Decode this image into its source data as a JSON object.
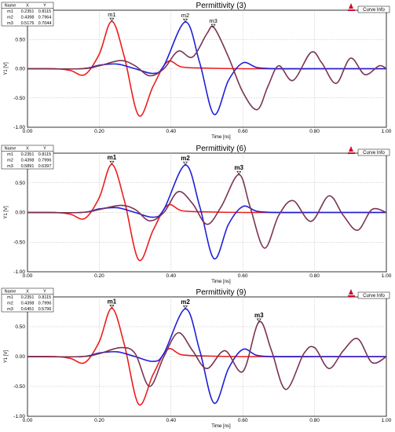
{
  "chart_data": [
    {
      "type": "line",
      "title": "Permittivity (3)",
      "xlabel": "Time [ns]",
      "ylabel": "Y1 [V]",
      "xlim": [
        0,
        1
      ],
      "ylim": [
        -1,
        1
      ],
      "xticks": [
        "0.00",
        "0.20",
        "0.40",
        "0.60",
        "0.80",
        "1.00"
      ],
      "yticks": [
        "1.00",
        "0.50",
        "0.00",
        "-0.50",
        "-1.00"
      ],
      "grid": true,
      "button_label": "Curve Info",
      "markers_table": {
        "headers": [
          "Name",
          "X",
          "Y"
        ],
        "rows": [
          [
            "m1",
            "0.2351",
            "0.8115"
          ],
          [
            "m2",
            "0.4398",
            "0.7964"
          ],
          [
            "m3",
            "0.5176",
            "0.7044"
          ]
        ]
      },
      "markers": [
        {
          "name": "m1",
          "x": 0.2351,
          "y": 0.8115
        },
        {
          "name": "m2",
          "x": 0.4398,
          "y": 0.7964
        },
        {
          "name": "m3",
          "x": 0.5176,
          "y": 0.7044
        }
      ],
      "series": [
        {
          "color": "#ee1c1c",
          "x": [
            0,
            0.08,
            0.12,
            0.16,
            0.2,
            0.235,
            0.27,
            0.31,
            0.35,
            0.39,
            0.43,
            0.5,
            0.6,
            0.8,
            1.0
          ],
          "values": [
            0,
            0,
            -0.03,
            -0.1,
            0.25,
            0.81,
            0.2,
            -0.8,
            -0.3,
            0.12,
            0.03,
            0.01,
            0,
            0,
            0
          ]
        },
        {
          "color": "#1f1fd8",
          "x": [
            0,
            0.15,
            0.2,
            0.25,
            0.3,
            0.35,
            0.38,
            0.44,
            0.48,
            0.52,
            0.56,
            0.6,
            0.64,
            0.7,
            0.8,
            1.0
          ],
          "values": [
            0,
            0,
            0.06,
            0.08,
            0,
            -0.08,
            0.05,
            0.8,
            0.1,
            -0.78,
            -0.2,
            0.1,
            0.02,
            0,
            0,
            0
          ]
        },
        {
          "color": "#7a3355",
          "x": [
            0,
            0.15,
            0.2,
            0.26,
            0.3,
            0.34,
            0.38,
            0.42,
            0.46,
            0.5,
            0.52,
            0.56,
            0.6,
            0.64,
            0.67,
            0.7,
            0.74,
            0.79,
            0.82,
            0.86,
            0.9,
            0.94,
            0.98,
            1.0
          ],
          "values": [
            0,
            0,
            0.05,
            0.14,
            0.05,
            -0.12,
            0.0,
            0.3,
            0.2,
            0.6,
            0.7,
            0.2,
            -0.4,
            -0.7,
            -0.3,
            0.05,
            -0.2,
            0.28,
            0.1,
            -0.25,
            0.18,
            -0.1,
            0.05,
            0
          ]
        }
      ]
    },
    {
      "type": "line",
      "title": "Permittivity (6)",
      "xlabel": "Time [ns]",
      "ylabel": "Y1 [V]",
      "xlim": [
        0,
        1
      ],
      "ylim": [
        -1,
        1
      ],
      "xticks": [
        "0.00",
        "0.20",
        "0.40",
        "0.60",
        "0.80",
        "1.00"
      ],
      "yticks": [
        "1.00",
        "0.50",
        "0.00",
        "-0.50",
        "-1.00"
      ],
      "grid": true,
      "button_label": "Curve Info",
      "markers_table": {
        "headers": [
          "Name",
          "X",
          "Y"
        ],
        "rows": [
          [
            "m1",
            "0.2351",
            "0.8115"
          ],
          [
            "m2",
            "0.4398",
            "0.7996"
          ],
          [
            "m3",
            "0.5891",
            "0.6397"
          ]
        ]
      },
      "markers": [
        {
          "name": "m1",
          "x": 0.2351,
          "y": 0.8115
        },
        {
          "name": "m2",
          "x": 0.4398,
          "y": 0.7996
        },
        {
          "name": "m3",
          "x": 0.5891,
          "y": 0.6397
        }
      ],
      "series": [
        {
          "color": "#ee1c1c",
          "x": [
            0,
            0.08,
            0.12,
            0.16,
            0.2,
            0.235,
            0.27,
            0.31,
            0.35,
            0.39,
            0.43,
            0.5,
            0.6,
            0.8,
            1.0
          ],
          "values": [
            0,
            0,
            -0.03,
            -0.1,
            0.25,
            0.81,
            0.2,
            -0.8,
            -0.3,
            0.12,
            0.03,
            0.01,
            0,
            0,
            0
          ]
        },
        {
          "color": "#1f1fd8",
          "x": [
            0,
            0.15,
            0.2,
            0.25,
            0.3,
            0.35,
            0.38,
            0.44,
            0.48,
            0.52,
            0.56,
            0.6,
            0.64,
            0.7,
            0.8,
            1.0
          ],
          "values": [
            0,
            0,
            0.06,
            0.08,
            0,
            -0.08,
            0.05,
            0.8,
            0.1,
            -0.78,
            -0.2,
            0.1,
            0.02,
            0,
            0,
            0
          ]
        },
        {
          "color": "#7a3355",
          "x": [
            0,
            0.15,
            0.2,
            0.26,
            0.3,
            0.34,
            0.38,
            0.42,
            0.46,
            0.5,
            0.54,
            0.589,
            0.62,
            0.66,
            0.7,
            0.74,
            0.79,
            0.84,
            0.88,
            0.92,
            0.96,
            1.0
          ],
          "values": [
            0,
            0,
            0.05,
            0.12,
            0.05,
            -0.14,
            0.0,
            0.35,
            0.15,
            -0.2,
            0.1,
            0.64,
            0.1,
            -0.6,
            -0.05,
            0.2,
            -0.15,
            0.28,
            -0.05,
            -0.3,
            0.05,
            0
          ]
        }
      ]
    },
    {
      "type": "line",
      "title": "Permittivity (9)",
      "xlabel": "Time [ns]",
      "ylabel": "Y1 [V]",
      "xlim": [
        0,
        1
      ],
      "ylim": [
        -1,
        1
      ],
      "xticks": [
        "0.00",
        "0.20",
        "0.40",
        "0.60",
        "0.80",
        "1.00"
      ],
      "yticks": [
        "1.00",
        "0.50",
        "0.00",
        "-0.50",
        "-1.00"
      ],
      "grid": true,
      "button_label": "Curve Info",
      "markers_table": {
        "headers": [
          "Name",
          "X",
          "Y"
        ],
        "rows": [
          [
            "m1",
            "0.2351",
            "0.8115"
          ],
          [
            "m2",
            "0.4398",
            "0.7996"
          ],
          [
            "m3",
            "0.6451",
            "0.5796"
          ]
        ]
      },
      "markers": [
        {
          "name": "m1",
          "x": 0.2351,
          "y": 0.8115
        },
        {
          "name": "m2",
          "x": 0.4398,
          "y": 0.7996
        },
        {
          "name": "m3",
          "x": 0.6451,
          "y": 0.5796
        }
      ],
      "series": [
        {
          "color": "#ee1c1c",
          "x": [
            0,
            0.08,
            0.12,
            0.16,
            0.2,
            0.235,
            0.27,
            0.31,
            0.35,
            0.39,
            0.43,
            0.5,
            0.6,
            0.8,
            1.0
          ],
          "values": [
            0,
            0,
            -0.03,
            -0.1,
            0.25,
            0.81,
            0.2,
            -0.8,
            -0.3,
            0.12,
            0.03,
            0.01,
            0,
            0,
            0
          ]
        },
        {
          "color": "#1f1fd8",
          "x": [
            0,
            0.15,
            0.2,
            0.25,
            0.3,
            0.35,
            0.38,
            0.44,
            0.48,
            0.52,
            0.56,
            0.6,
            0.64,
            0.7,
            0.8,
            1.0
          ],
          "values": [
            0,
            0,
            0.06,
            0.08,
            0,
            -0.08,
            0.05,
            0.8,
            0.1,
            -0.78,
            -0.2,
            0.12,
            0.02,
            0,
            0,
            0
          ]
        },
        {
          "color": "#7a3355",
          "x": [
            0,
            0.15,
            0.2,
            0.26,
            0.3,
            0.34,
            0.38,
            0.42,
            0.46,
            0.5,
            0.55,
            0.6,
            0.645,
            0.68,
            0.72,
            0.77,
            0.8,
            0.84,
            0.88,
            0.92,
            0.96,
            1.0
          ],
          "values": [
            0,
            0,
            0.05,
            0.15,
            0.05,
            -0.5,
            0.0,
            0.4,
            0.1,
            -0.2,
            0.1,
            -0.25,
            0.58,
            0.1,
            -0.55,
            0.05,
            0.15,
            -0.2,
            0.1,
            0.3,
            -0.1,
            0
          ]
        }
      ]
    }
  ]
}
